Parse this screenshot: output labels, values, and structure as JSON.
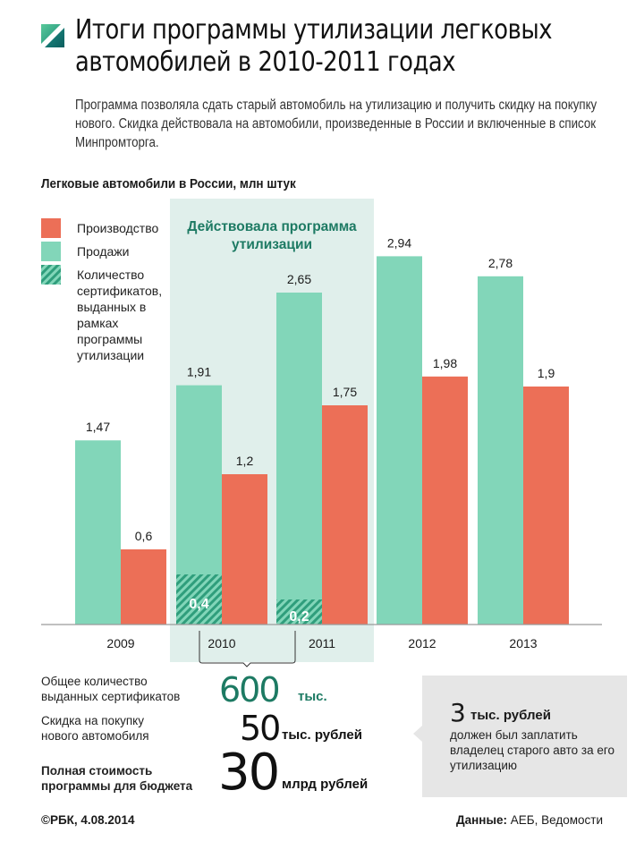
{
  "header": {
    "logo_icon": "rbc-diagonal-square-icon",
    "title_line1": "Итоги программы утилизации легковых",
    "title_line2": "автомобилей в 2010-2011 годах",
    "lead": "Программа позволяла сдать старый автомобиль на утилизацию и получить скидку на покупку нового. Скидка действовала на автомобили, произведенные в России и включенные в список Минпромторга."
  },
  "legend": {
    "production": "Производство",
    "sales": "Продажи",
    "certificates": "Количество сертификатов, выданных в рамках программы утилизации"
  },
  "colors": {
    "production": "#ec6f57",
    "sales": "#82d6b9",
    "certificates": "#2f9e7c",
    "band": "#e0efeb",
    "band_text": "#1d7a63",
    "accent_green": "#1d7a63",
    "note_bg": "#e6e6e6"
  },
  "chart_data": {
    "type": "bar",
    "title": "Легковые автомобили в России, млн штук",
    "xlabel": "",
    "ylabel": "млн штук",
    "ylim": [
      0,
      3.2
    ],
    "grid": false,
    "legend_position": "top-left",
    "categories": [
      "2009",
      "2010",
      "2011",
      "2012",
      "2013"
    ],
    "series": [
      {
        "name": "Продажи",
        "values": [
          1.47,
          1.91,
          2.65,
          2.94,
          2.78
        ],
        "labels": [
          "1,47",
          "1,91",
          "2,65",
          "2,94",
          "2,78"
        ]
      },
      {
        "name": "Производство",
        "values": [
          0.6,
          1.2,
          1.75,
          1.98,
          1.9
        ],
        "labels": [
          "0,6",
          "1,2",
          "1,75",
          "1,98",
          "1,9"
        ]
      },
      {
        "name": "Количество сертификатов",
        "values": [
          null,
          0.4,
          0.2,
          null,
          null
        ],
        "labels": [
          "",
          "0,4",
          "0,2",
          "",
          ""
        ]
      }
    ],
    "annotation": {
      "highlight_categories": [
        "2010",
        "2011"
      ],
      "text": "Действовала программа утилизации"
    }
  },
  "stats": [
    {
      "label": "Общее количество выданных сертификатов",
      "value": "600",
      "unit": "тыс."
    },
    {
      "label": "Скидка на покупку нового автомобиля",
      "value": "50",
      "unit": "тыс. рублей"
    },
    {
      "label": "Полная стоимость программы для бюджета",
      "value": "30",
      "unit": "млрд рублей"
    }
  ],
  "note": {
    "value": "3",
    "unit": "тыс. рублей",
    "text": "должен был заплатить владелец старого авто за его утилизацию"
  },
  "footer": {
    "copyright": "©РБК, 4.08.2014",
    "source_label": "Данные:",
    "source": "АЕБ, Ведомости"
  }
}
